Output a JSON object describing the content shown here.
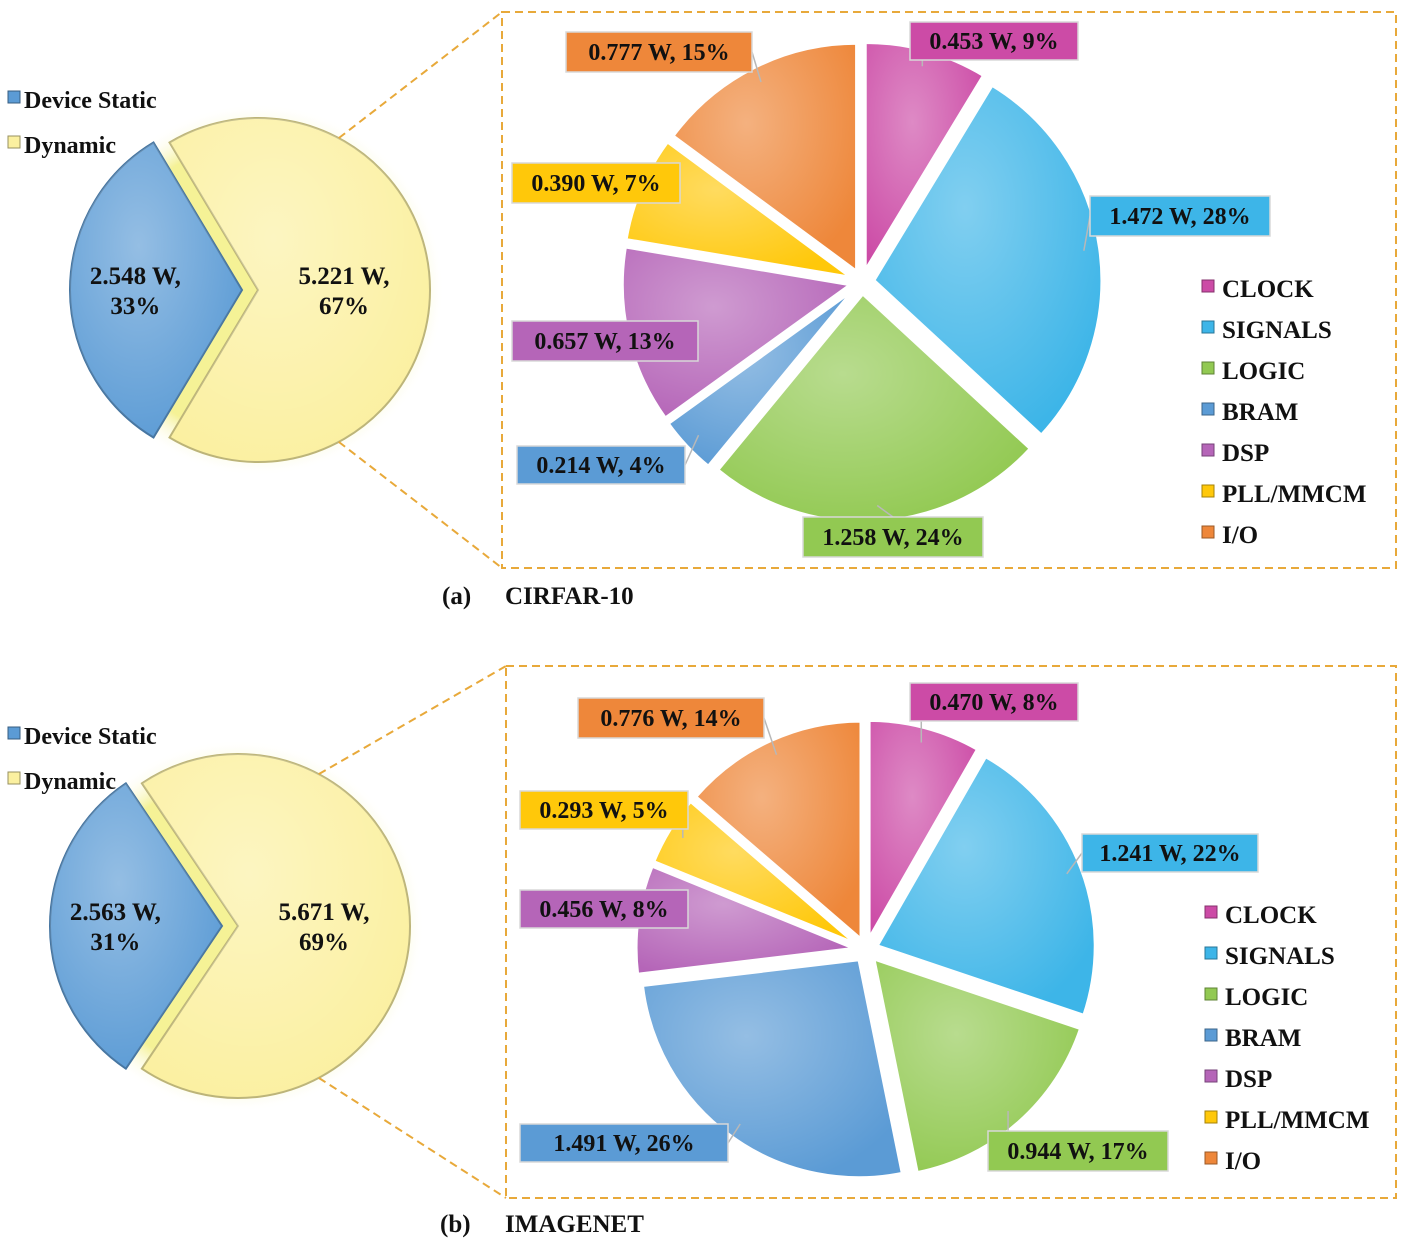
{
  "colors": {
    "device_static": "#5B9BD5",
    "dynamic": "#FBF0A0",
    "clock": "#CC4BA6",
    "signals": "#3DB5E8",
    "logic": "#92C952",
    "bram": "#5B9BD5",
    "dsp": "#B565B8",
    "pll_mmcm": "#FFC80A",
    "io": "#EE873A",
    "frame": "#E8A93A"
  },
  "chart_data": [
    {
      "id": "cifar10",
      "caption_letter": "(a)",
      "caption_name": "CIRFAR-10",
      "overview": {
        "type": "pie",
        "legend": [
          "Device Static",
          "Dynamic"
        ],
        "slices": [
          {
            "key": "device_static",
            "name": "Device Static",
            "value": 2.548,
            "percent": 33,
            "label_line1": "2.548 W,",
            "label_line2": "33%"
          },
          {
            "key": "dynamic",
            "name": "Dynamic",
            "value": 5.221,
            "percent": 67,
            "label_line1": "5.221 W,",
            "label_line2": "67%"
          }
        ]
      },
      "breakdown": {
        "type": "pie",
        "legend": [
          "CLOCK",
          "SIGNALS",
          "LOGIC",
          "BRAM",
          "DSP",
          "PLL/MMCM",
          "I/O"
        ],
        "slices": [
          {
            "key": "clock",
            "name": "CLOCK",
            "value": 0.453,
            "percent": 9,
            "label": "0.453 W, 9%"
          },
          {
            "key": "signals",
            "name": "SIGNALS",
            "value": 1.472,
            "percent": 28,
            "label": "1.472 W, 28%"
          },
          {
            "key": "logic",
            "name": "LOGIC",
            "value": 1.258,
            "percent": 24,
            "label": "1.258 W, 24%"
          },
          {
            "key": "bram",
            "name": "BRAM",
            "value": 0.214,
            "percent": 4,
            "label": "0.214 W, 4%"
          },
          {
            "key": "dsp",
            "name": "DSP",
            "value": 0.657,
            "percent": 13,
            "label": "0.657 W, 13%"
          },
          {
            "key": "pll_mmcm",
            "name": "PLL/MMCM",
            "value": 0.39,
            "percent": 7,
            "label": "0.390 W, 7%"
          },
          {
            "key": "io",
            "name": "I/O",
            "value": 0.777,
            "percent": 15,
            "label": "0.777 W, 15%"
          }
        ]
      }
    },
    {
      "id": "imagenet",
      "caption_letter": "(b)",
      "caption_name": "IMAGENET",
      "overview": {
        "type": "pie",
        "legend": [
          "Device Static",
          "Dynamic"
        ],
        "slices": [
          {
            "key": "device_static",
            "name": "Device Static",
            "value": 2.563,
            "percent": 31,
            "label_line1": "2.563 W,",
            "label_line2": "31%"
          },
          {
            "key": "dynamic",
            "name": "Dynamic",
            "value": 5.671,
            "percent": 69,
            "label_line1": "5.671 W,",
            "label_line2": "69%"
          }
        ]
      },
      "breakdown": {
        "type": "pie",
        "legend": [
          "CLOCK",
          "SIGNALS",
          "LOGIC",
          "BRAM",
          "DSP",
          "PLL/MMCM",
          "I/O"
        ],
        "slices": [
          {
            "key": "clock",
            "name": "CLOCK",
            "value": 0.47,
            "percent": 8,
            "label": "0.470 W, 8%"
          },
          {
            "key": "signals",
            "name": "SIGNALS",
            "value": 1.241,
            "percent": 22,
            "label": "1.241 W, 22%"
          },
          {
            "key": "logic",
            "name": "LOGIC",
            "value": 0.944,
            "percent": 17,
            "label": "0.944 W, 17%"
          },
          {
            "key": "bram",
            "name": "BRAM",
            "value": 1.491,
            "percent": 26,
            "label": "1.491 W, 26%"
          },
          {
            "key": "dsp",
            "name": "DSP",
            "value": 0.456,
            "percent": 8,
            "label": "0.456 W, 8%"
          },
          {
            "key": "pll_mmcm",
            "name": "PLL/MMCM",
            "value": 0.293,
            "percent": 5,
            "label": "0.293 W, 5%"
          },
          {
            "key": "io",
            "name": "I/O",
            "value": 0.776,
            "percent": 14,
            "label": "0.776 W, 14%"
          }
        ]
      }
    }
  ]
}
